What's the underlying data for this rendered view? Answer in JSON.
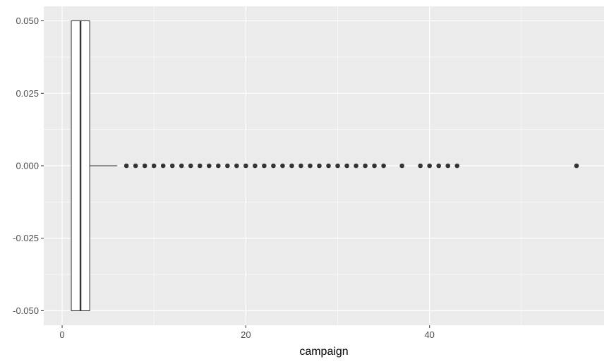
{
  "chart_data": {
    "type": "boxplot",
    "xlabel": "campaign",
    "ylabel": "",
    "xlim": [
      -2,
      59
    ],
    "ylim": [
      -0.055,
      0.055
    ],
    "x_ticks": [
      0,
      20,
      40
    ],
    "x_tick_labels": [
      "0",
      "20",
      "40"
    ],
    "x_minor_ticks": [
      10,
      30,
      50
    ],
    "y_ticks": [
      -0.05,
      -0.025,
      0,
      0.025,
      0.05
    ],
    "y_tick_labels": [
      "-0.050",
      "-0.025",
      "0.000",
      "0.025",
      "0.050"
    ],
    "y_minor_ticks": [
      -0.0375,
      -0.0125,
      0.0125,
      0.0375
    ],
    "grid": true,
    "box": {
      "min": 1,
      "q1": 1,
      "median": 2,
      "q3": 3,
      "whisker_high": 6,
      "y_extent": [
        -0.05,
        0.05
      ]
    },
    "outliers": [
      7,
      8,
      9,
      10,
      11,
      12,
      13,
      14,
      15,
      16,
      17,
      18,
      19,
      20,
      21,
      22,
      23,
      24,
      25,
      26,
      27,
      28,
      29,
      30,
      31,
      32,
      33,
      34,
      35,
      37,
      39,
      40,
      41,
      42,
      43,
      56
    ],
    "colors": {
      "panel": "#ebebeb",
      "grid_major": "#ffffff",
      "box_fill": "#ffffff",
      "box_line": "#333333",
      "point": "#333333",
      "tick_text": "#4d4d4d"
    }
  }
}
